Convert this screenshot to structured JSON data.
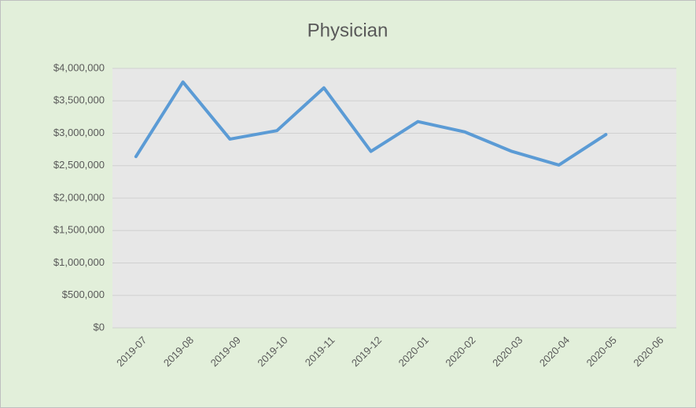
{
  "chart_data": {
    "type": "line",
    "title": "Physician",
    "categories": [
      "2019-07",
      "2019-08",
      "2019-09",
      "2019-10",
      "2019-11",
      "2019-12",
      "2020-01",
      "2020-02",
      "2020-03",
      "2020-04",
      "2020-05",
      "2020-06"
    ],
    "series": [
      {
        "name": "Physician",
        "color": "#5b9bd5",
        "values": [
          2640000,
          3790000,
          2910000,
          3040000,
          3700000,
          2720000,
          3180000,
          3020000,
          2720000,
          2510000,
          2980000,
          null
        ]
      }
    ],
    "ylim": [
      0,
      4000000
    ],
    "yticks": [
      {
        "value": 0,
        "label": "$0"
      },
      {
        "value": 500000,
        "label": "$500,000"
      },
      {
        "value": 1000000,
        "label": "$1,000,000"
      },
      {
        "value": 1500000,
        "label": "$1,500,000"
      },
      {
        "value": 2000000,
        "label": "$2,000,000"
      },
      {
        "value": 2500000,
        "label": "$2,500,000"
      },
      {
        "value": 3000000,
        "label": "$3,000,000"
      },
      {
        "value": 3500000,
        "label": "$3,500,000"
      },
      {
        "value": 4000000,
        "label": "$4,000,000"
      }
    ],
    "grid": true
  }
}
